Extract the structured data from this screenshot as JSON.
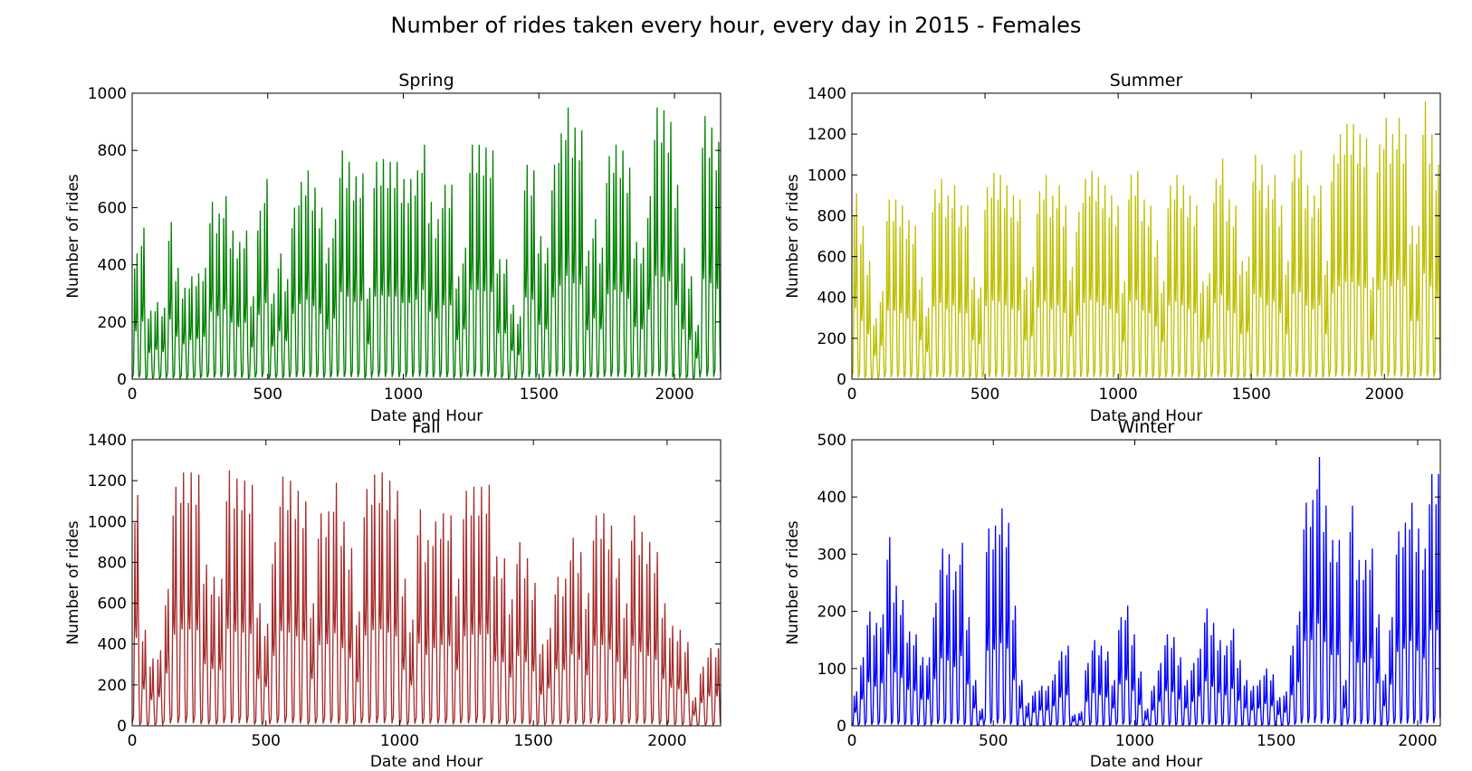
{
  "figure": {
    "title": "Number of rides taken every hour, every day in 2015 - Females"
  },
  "chart_data": [
    {
      "type": "line",
      "title": "Spring",
      "xlabel": "Date and Hour",
      "ylabel": "Number of rides",
      "xlim": [
        0,
        2170
      ],
      "ylim": [
        0,
        1000
      ],
      "xticks": [
        0,
        500,
        1000,
        1500,
        2000
      ],
      "yticks": [
        0,
        200,
        400,
        600,
        800,
        1000
      ],
      "color": "#008000",
      "daily_peaks": [
        440,
        530,
        240,
        270,
        250,
        550,
        390,
        320,
        360,
        370,
        390,
        620,
        580,
        640,
        520,
        480,
        520,
        290,
        590,
        700,
        300,
        440,
        350,
        600,
        690,
        730,
        670,
        600,
        460,
        560,
        800,
        760,
        710,
        720,
        320,
        760,
        770,
        760,
        760,
        700,
        700,
        730,
        820,
        620,
        560,
        680,
        680,
        360,
        460,
        820,
        820,
        810,
        800,
        420,
        420,
        260,
        220,
        750,
        730,
        500,
        460,
        750,
        860,
        950,
        880,
        870,
        450,
        560,
        460,
        780,
        820,
        800,
        740,
        480,
        460,
        640,
        950,
        940,
        900,
        680,
        460,
        360,
        190,
        920,
        880,
        830
      ]
    },
    {
      "type": "line",
      "title": "Summer",
      "xlabel": "Date and Hour",
      "ylabel": "Number of rides",
      "xlim": [
        0,
        2210
      ],
      "ylim": [
        0,
        1400
      ],
      "xticks": [
        0,
        500,
        1000,
        1500,
        2000
      ],
      "yticks": [
        0,
        200,
        400,
        600,
        800,
        1000,
        1200,
        1400
      ],
      "color": "#bfbf00",
      "daily_peaks": [
        910,
        750,
        580,
        300,
        430,
        880,
        880,
        850,
        780,
        750,
        500,
        350,
        930,
        980,
        900,
        950,
        850,
        850,
        500,
        450,
        940,
        1010,
        1000,
        950,
        900,
        880,
        500,
        550,
        920,
        1000,
        900,
        950,
        850,
        550,
        820,
        980,
        1020,
        990,
        950,
        900,
        850,
        480,
        1000,
        1020,
        880,
        850,
        680,
        480,
        950,
        1000,
        950,
        900,
        850,
        480,
        520,
        980,
        1080,
        880,
        850,
        580,
        600,
        1100,
        1050,
        950,
        1000,
        850,
        580,
        1100,
        1120,
        950,
        900,
        950,
        580,
        1100,
        1200,
        1250,
        1250,
        1200,
        1180,
        500,
        1150,
        1280,
        1200,
        1280,
        1200,
        750,
        750,
        1360,
        1200,
        1050
      ]
    },
    {
      "type": "line",
      "title": "Fall",
      "xlabel": "Date and Hour",
      "ylabel": "Number of rides",
      "xlim": [
        0,
        2200
      ],
      "ylim": [
        0,
        1400
      ],
      "xticks": [
        0,
        500,
        1000,
        1500,
        2000
      ],
      "yticks": [
        0,
        200,
        400,
        600,
        800,
        1000,
        1200,
        1400
      ],
      "color": "#a52a2a",
      "daily_peaks": [
        1130,
        470,
        330,
        370,
        670,
        1170,
        1240,
        1240,
        1230,
        790,
        730,
        720,
        1250,
        1210,
        1200,
        1180,
        600,
        500,
        900,
        1220,
        1200,
        1150,
        1100,
        600,
        1040,
        1050,
        1190,
        1000,
        870,
        560,
        1160,
        1230,
        1240,
        1200,
        1150,
        720,
        520,
        1060,
        910,
        1000,
        1040,
        1030,
        720,
        1150,
        1170,
        1170,
        1180,
        830,
        820,
        620,
        900,
        820,
        700,
        400,
        480,
        730,
        720,
        920,
        850,
        650,
        1030,
        1040,
        980,
        820,
        600,
        1030,
        950,
        900,
        850,
        600,
        490,
        470,
        410,
        140,
        290,
        380,
        380
      ]
    },
    {
      "type": "line",
      "title": "Winter",
      "xlabel": "Date and Hour",
      "ylabel": "Number of rides",
      "xlim": [
        0,
        2080
      ],
      "ylim": [
        0,
        500
      ],
      "xticks": [
        0,
        500,
        1000,
        1500,
        2000
      ],
      "yticks": [
        0,
        100,
        200,
        300,
        400,
        500
      ],
      "color": "#0000ff",
      "daily_peaks": [
        60,
        120,
        200,
        180,
        195,
        330,
        245,
        220,
        165,
        160,
        120,
        120,
        215,
        310,
        300,
        270,
        320,
        190,
        80,
        30,
        345,
        350,
        380,
        355,
        210,
        80,
        40,
        60,
        70,
        70,
        90,
        130,
        140,
        20,
        25,
        110,
        150,
        140,
        130,
        80,
        190,
        210,
        160,
        95,
        30,
        70,
        110,
        160,
        155,
        120,
        80,
        110,
        135,
        205,
        180,
        150,
        140,
        170,
        115,
        80,
        70,
        80,
        100,
        90,
        50,
        60,
        140,
        200,
        390,
        395,
        470,
        385,
        325,
        325,
        80,
        385,
        290,
        290,
        310,
        195,
        90,
        190,
        340,
        355,
        390,
        345,
        310,
        440,
        440
      ]
    }
  ]
}
